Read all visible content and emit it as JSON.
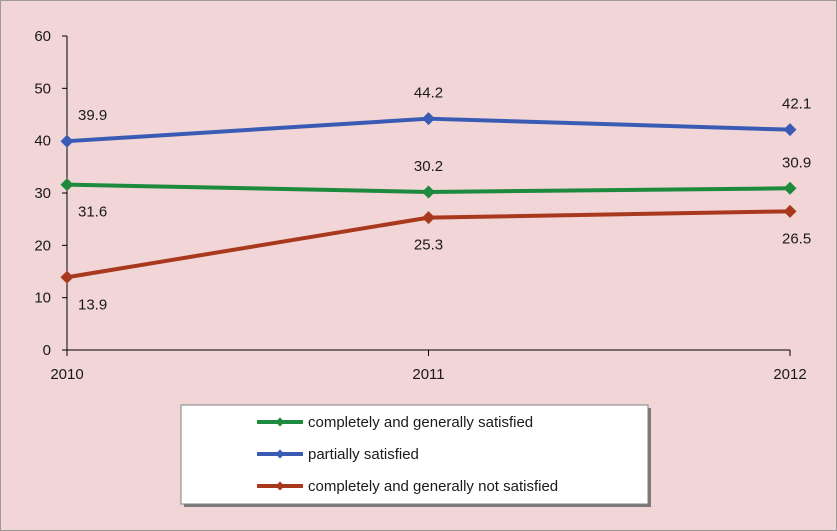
{
  "colors": {
    "background": "#f2d5d6",
    "border": "#9a9a9a",
    "axis": "#000000",
    "legend_background": "#ffffff",
    "legend_border": "#808080",
    "legend_shadow": "#7a7a7a"
  },
  "chart_data": {
    "type": "line",
    "title": "",
    "xlabel": "",
    "ylabel": "",
    "x": [
      "2010",
      "2011",
      "2012"
    ],
    "ylim": [
      0,
      60
    ],
    "yticks": [
      0,
      10,
      20,
      30,
      40,
      50,
      60
    ],
    "grid": false,
    "legend_position": "bottom",
    "series": [
      {
        "name": "completely and generally satisfied",
        "color": "#1e8a3e",
        "values": [
          31.6,
          30.2,
          30.9
        ],
        "labels": [
          "31.6",
          "30.2",
          "30.9"
        ],
        "label_side": [
          "below",
          "above",
          "above"
        ]
      },
      {
        "name": "partially satisfied",
        "color": "#3a5bb4",
        "values": [
          39.9,
          44.2,
          42.1
        ],
        "labels": [
          "39.9",
          "44.2",
          "42.1"
        ],
        "label_side": [
          "above",
          "above",
          "above"
        ]
      },
      {
        "name": "completely and generally not satisfied",
        "color": "#a8391e",
        "values": [
          13.9,
          25.3,
          26.5
        ],
        "labels": [
          "13.9",
          "25.3",
          "26.5"
        ],
        "label_side": [
          "below",
          "below",
          "below"
        ]
      }
    ]
  }
}
